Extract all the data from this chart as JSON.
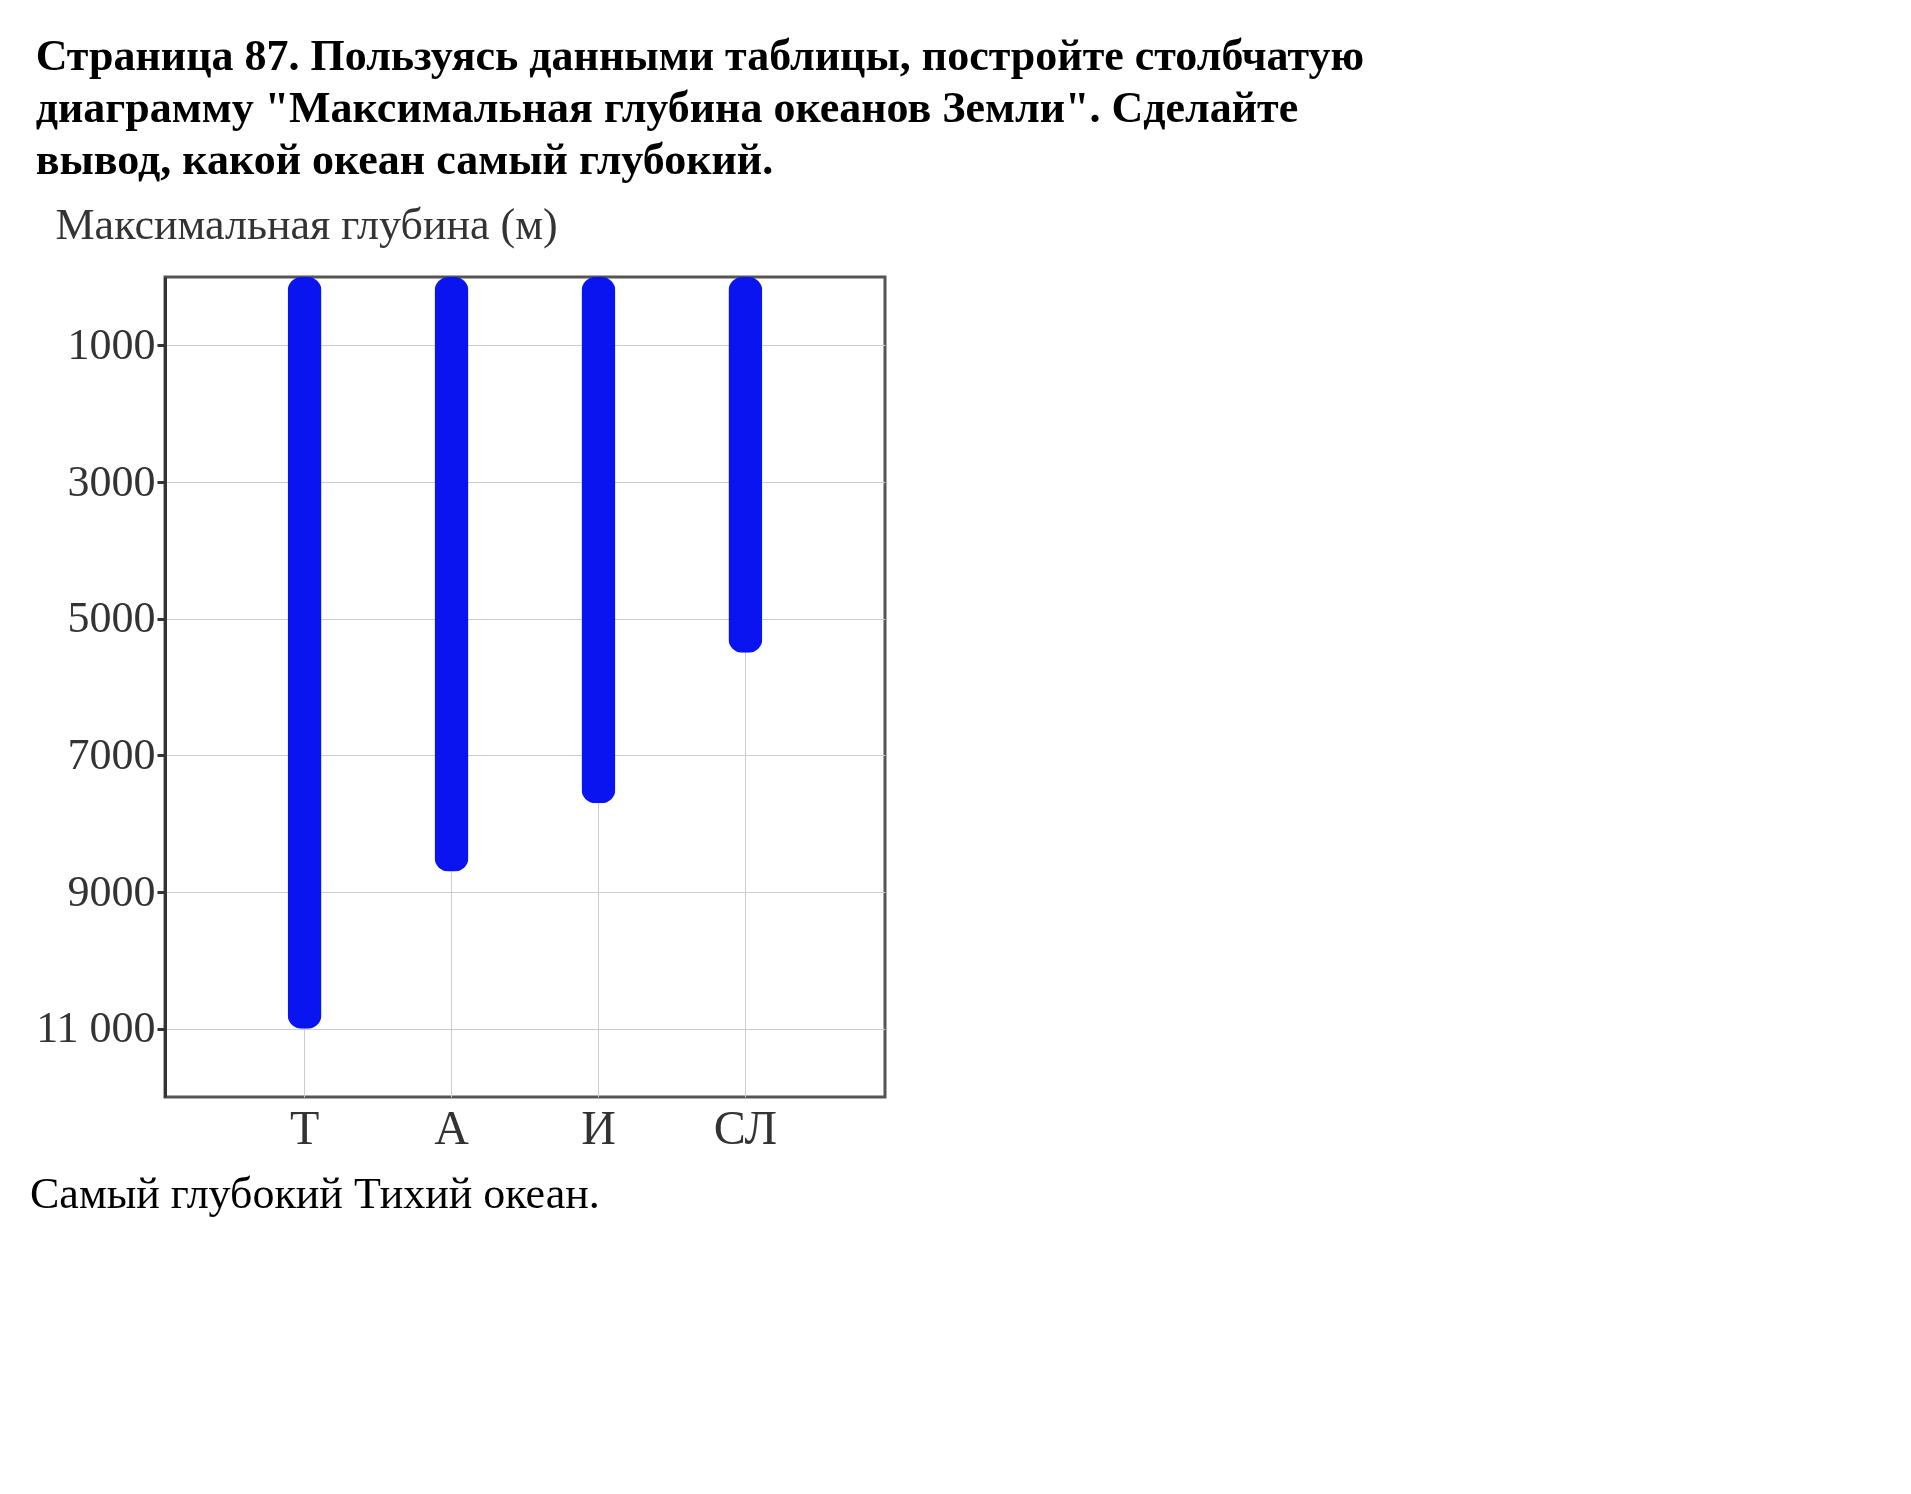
{
  "chart_data": {
    "type": "bar",
    "title": "Страница 87. Пользуясь данными таблицы, постройте столбчатую диаграмму \"Максимальная глубина океанов Земли\". Сделайте вывод, какой океан самый глубокий.",
    "ylabel": "Максимальная глубина (м)",
    "categories": [
      "Т",
      "А",
      "И",
      "СЛ"
    ],
    "values": [
      11000,
      8700,
      7700,
      5500
    ],
    "color": "#0a14f0",
    "ylim": [
      12000,
      0
    ],
    "yticks": [
      1000,
      3000,
      5000,
      7000,
      9000,
      {
        "value": 11000,
        "label": "11 000"
      }
    ],
    "grid": true,
    "annotations": [
      "Самый глубокий Тихий океан."
    ]
  }
}
